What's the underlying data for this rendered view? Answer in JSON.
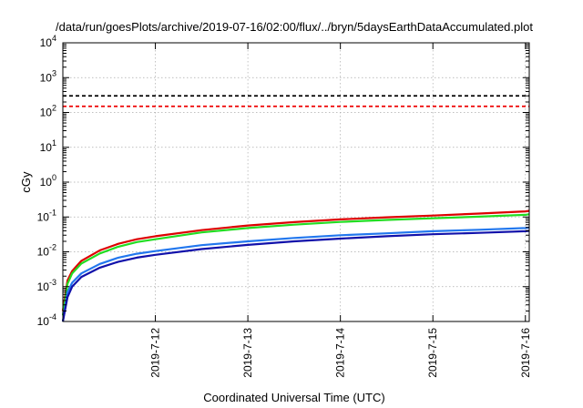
{
  "chart_data": {
    "type": "line",
    "title": "/data/run/goesPlots/archive/2019-07-16/02:00/flux/../bryn/5daysEarthDataAccumulated.plot",
    "xlabel": "Coordinated Universal Time (UTC)",
    "ylabel": "cGy",
    "x_range_days": [
      "2019-7-11 00:00",
      "2019-7-16 01:00"
    ],
    "x_ticks": [
      "2019-7-12",
      "2019-7-13",
      "2019-7-14",
      "2019-7-15",
      "2019-7-16"
    ],
    "ylim": [
      0.0001,
      10000
    ],
    "yscale": "log",
    "y_ticks": [
      {
        "value": 0.0001,
        "base": "10",
        "exp": "-4"
      },
      {
        "value": 0.001,
        "base": "10",
        "exp": "-3"
      },
      {
        "value": 0.01,
        "base": "10",
        "exp": "-2"
      },
      {
        "value": 0.1,
        "base": "10",
        "exp": "-1"
      },
      {
        "value": 1,
        "base": "10",
        "exp": "0"
      },
      {
        "value": 10,
        "base": "10",
        "exp": "1"
      },
      {
        "value": 100,
        "base": "10",
        "exp": "2"
      },
      {
        "value": 1000,
        "base": "10",
        "exp": "3"
      },
      {
        "value": 10000,
        "base": "10",
        "exp": "4"
      }
    ],
    "grid": true,
    "thresholds": [
      {
        "value": 300,
        "color": "#000000",
        "style": "dashed"
      },
      {
        "value": 150,
        "color": "#ee0000",
        "style": "dashed"
      }
    ],
    "series": [
      {
        "color": "#dd0000",
        "x": [
          "2019-7-11 00:00",
          "2019-7-11 01:12",
          "2019-7-11 02:24",
          "2019-7-11 04:48",
          "2019-7-11 09:36",
          "2019-7-11 14:24",
          "2019-7-11 19:12",
          "2019-7-12 00:00",
          "2019-7-12 12:00",
          "2019-7-13 00:00",
          "2019-7-13 12:00",
          "2019-7-14 00:00",
          "2019-7-14 12:00",
          "2019-7-15 00:00",
          "2019-7-15 12:00",
          "2019-7-16 00:00",
          "2019-7-16 01:00"
        ],
        "y": [
          0.0002,
          0.0015,
          0.0028,
          0.0055,
          0.011,
          0.017,
          0.023,
          0.028,
          0.042,
          0.057,
          0.071,
          0.085,
          0.098,
          0.11,
          0.125,
          0.145,
          0.15
        ]
      },
      {
        "color": "#22dd22",
        "x": [
          "2019-7-11 00:00",
          "2019-7-11 01:12",
          "2019-7-11 02:24",
          "2019-7-11 04:48",
          "2019-7-11 09:36",
          "2019-7-11 14:24",
          "2019-7-11 19:12",
          "2019-7-12 00:00",
          "2019-7-12 12:00",
          "2019-7-13 00:00",
          "2019-7-13 12:00",
          "2019-7-14 00:00",
          "2019-7-14 12:00",
          "2019-7-15 00:00",
          "2019-7-15 12:00",
          "2019-7-16 00:00",
          "2019-7-16 01:00"
        ],
        "y": [
          0.00015,
          0.0012,
          0.0024,
          0.0046,
          0.009,
          0.014,
          0.019,
          0.023,
          0.036,
          0.048,
          0.06,
          0.072,
          0.082,
          0.092,
          0.102,
          0.115,
          0.12
        ]
      },
      {
        "color": "#2277ee",
        "x": [
          "2019-7-11 00:00",
          "2019-7-11 01:12",
          "2019-7-11 02:24",
          "2019-7-11 04:48",
          "2019-7-11 09:36",
          "2019-7-11 14:24",
          "2019-7-11 19:12",
          "2019-7-12 00:00",
          "2019-7-12 12:00",
          "2019-7-13 00:00",
          "2019-7-13 12:00",
          "2019-7-14 00:00",
          "2019-7-14 12:00",
          "2019-7-15 00:00",
          "2019-7-15 12:00",
          "2019-7-16 00:00",
          "2019-7-16 01:00"
        ],
        "y": [
          0.0001,
          0.0007,
          0.0013,
          0.0024,
          0.0045,
          0.0068,
          0.0088,
          0.0105,
          0.0155,
          0.02,
          0.025,
          0.03,
          0.034,
          0.039,
          0.043,
          0.048,
          0.05
        ]
      },
      {
        "color": "#1111aa",
        "x": [
          "2019-7-11 00:00",
          "2019-7-11 01:12",
          "2019-7-11 02:24",
          "2019-7-11 04:48",
          "2019-7-11 09:36",
          "2019-7-11 14:24",
          "2019-7-11 19:12",
          "2019-7-12 00:00",
          "2019-7-12 12:00",
          "2019-7-13 00:00",
          "2019-7-13 12:00",
          "2019-7-14 00:00",
          "2019-7-14 12:00",
          "2019-7-15 00:00",
          "2019-7-15 12:00",
          "2019-7-16 00:00",
          "2019-7-16 01:00"
        ],
        "y": [
          0.0001,
          0.0005,
          0.001,
          0.0019,
          0.0035,
          0.0052,
          0.0068,
          0.0082,
          0.012,
          0.0158,
          0.02,
          0.024,
          0.028,
          0.032,
          0.035,
          0.039,
          0.04
        ]
      }
    ]
  }
}
